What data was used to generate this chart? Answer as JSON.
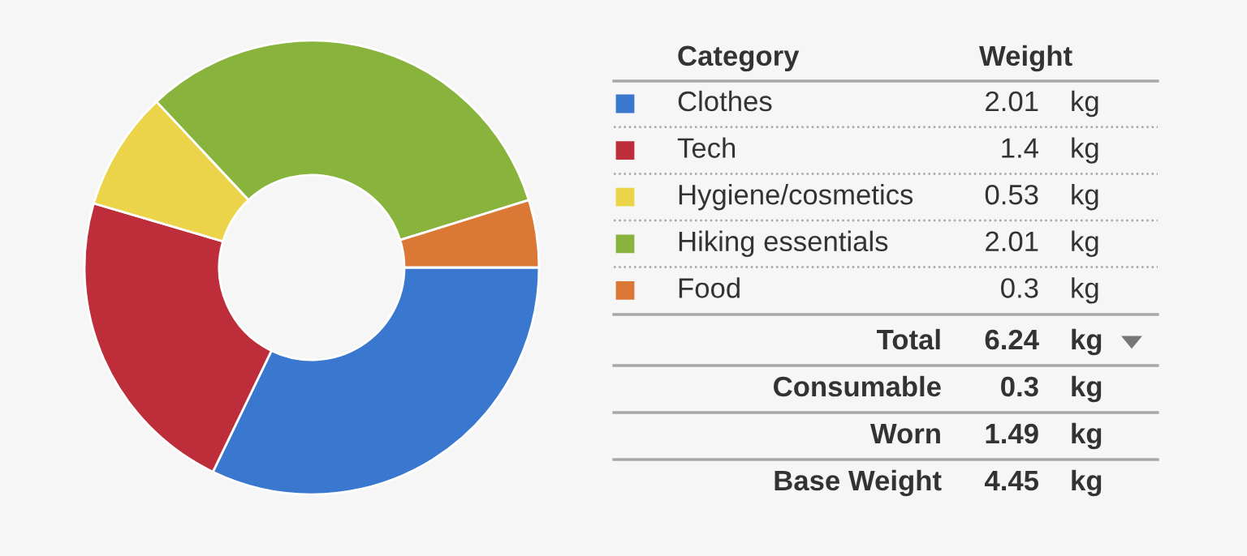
{
  "chart_data": {
    "type": "donut",
    "legend_title": "Category",
    "categories": [
      "Clothes",
      "Tech",
      "Hygiene/cosmetics",
      "Hiking essentials",
      "Food"
    ],
    "values": [
      2.01,
      1.4,
      0.53,
      2.01,
      0.3
    ],
    "colors": [
      "#3a78cf",
      "#be2e3a",
      "#ecd44a",
      "#88b33c",
      "#db7836"
    ],
    "value_labels": [
      "2.01 kg",
      "1.4 kg",
      "0.53 kg",
      "2.01 kg",
      "0.3 kg"
    ],
    "annotations": [
      "Weight",
      "Total 6.24 kg",
      "Consumable 0.3 kg",
      "Worn 1.49 kg",
      "Base Weight 4.45 kg"
    ],
    "legend": "right"
  }
}
